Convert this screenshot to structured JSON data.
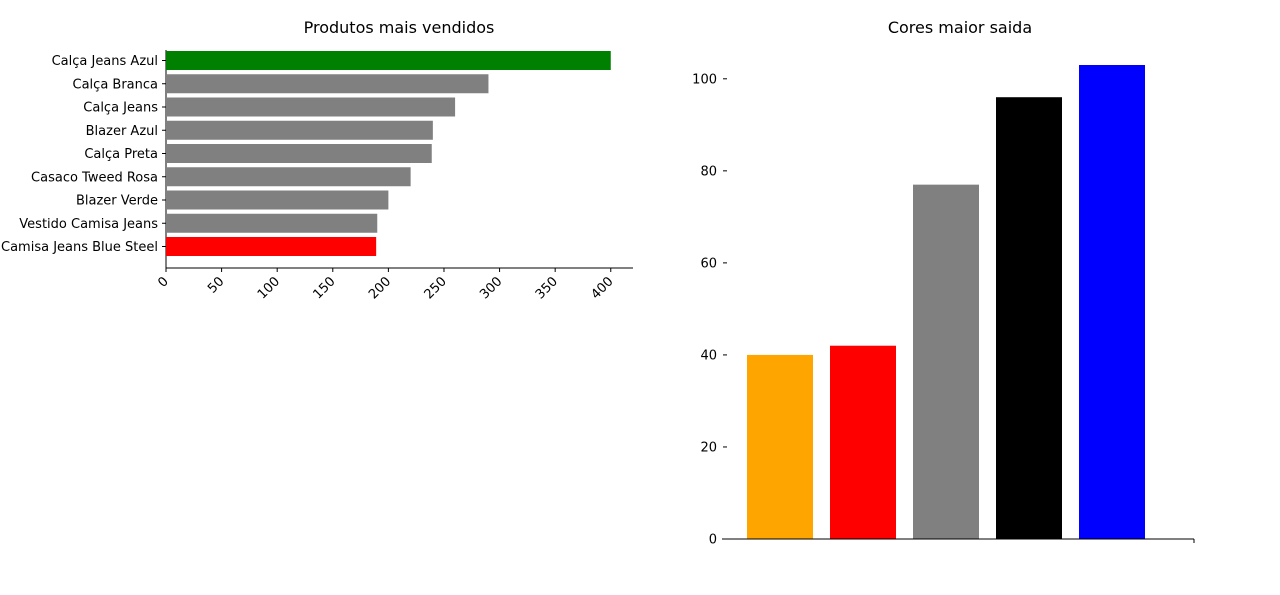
{
  "chart_data": [
    {
      "type": "bar",
      "orientation": "horizontal",
      "title": "Produtos mais vendidos",
      "xlabel": "",
      "ylabel": "",
      "categories": [
        "Calça Jeans Azul",
        "Calça Branca",
        "Calça Jeans",
        "Blazer Azul",
        "Calça Preta",
        "Casaco Tweed Rosa",
        "Blazer Verde",
        "Vestido Camisa Jeans",
        "Camisa Jeans Blue Steel"
      ],
      "values": [
        400,
        290,
        260,
        240,
        239,
        220,
        200,
        190,
        189
      ],
      "colors": [
        "#008000",
        "#808080",
        "#808080",
        "#808080",
        "#808080",
        "#808080",
        "#808080",
        "#808080",
        "#ff0000"
      ],
      "xticks": [
        0,
        50,
        100,
        150,
        200,
        250,
        300,
        350,
        400
      ],
      "xlim": [
        0,
        420
      ],
      "grid": false
    },
    {
      "type": "bar",
      "orientation": "vertical",
      "title": "Cores maior saida",
      "xlabel": "",
      "ylabel": "",
      "categories": [
        "",
        "",
        "",
        "",
        ""
      ],
      "values": [
        40,
        42,
        77,
        96,
        103
      ],
      "colors": [
        "#ffa500",
        "#ff0000",
        "#808080",
        "#000000",
        "#0000ff"
      ],
      "yticks": [
        0,
        20,
        40,
        60,
        80,
        100
      ],
      "ylim": [
        0,
        103
      ],
      "grid": false
    }
  ]
}
